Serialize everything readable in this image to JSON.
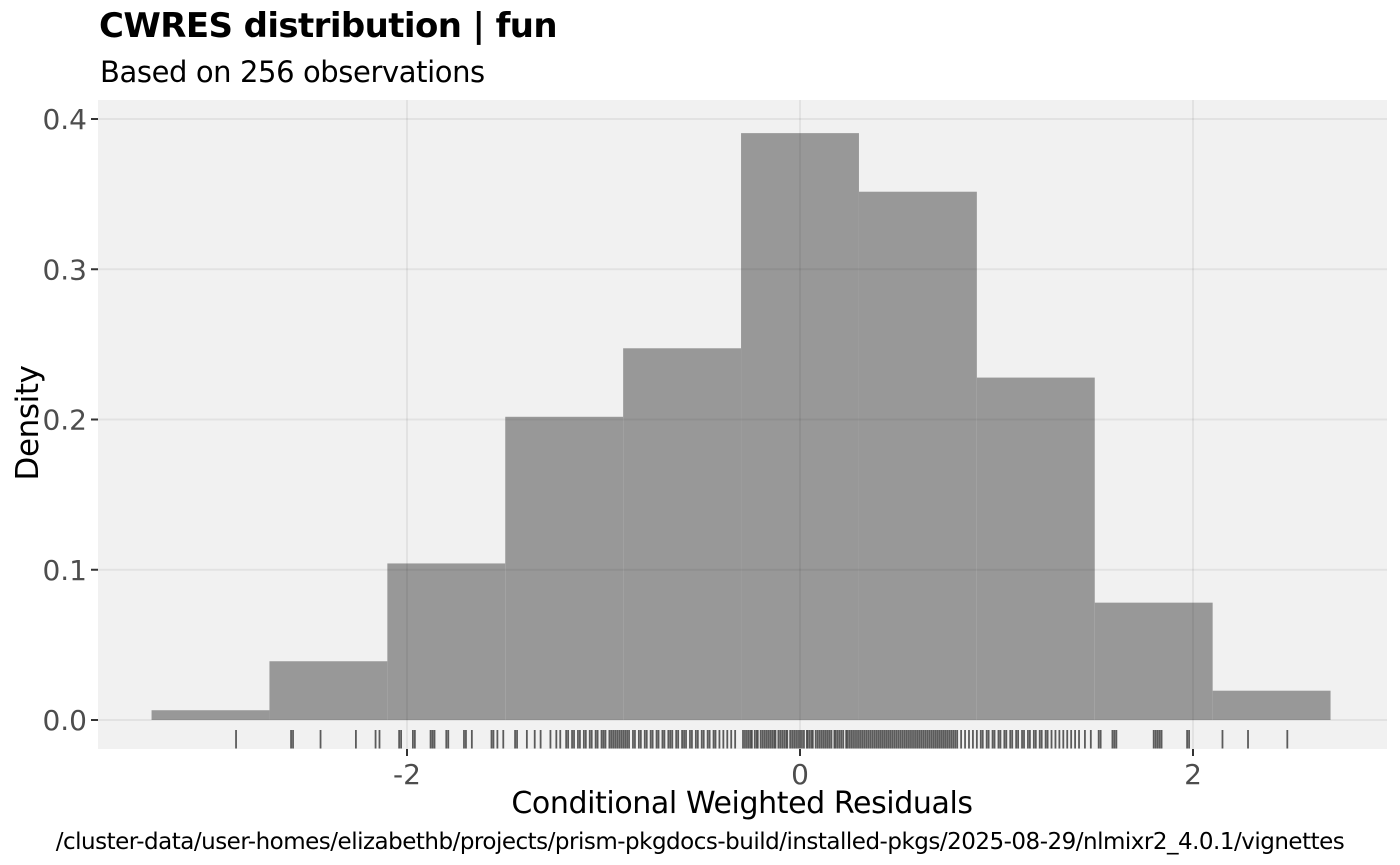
{
  "colors": {
    "page_bg": "#ffffff",
    "panel_bg": "#f1f1f1",
    "bar_fill": "#989898",
    "grid_overlay": "#000000",
    "tick_mark": "#333333",
    "tick_label": "#4d4d4d",
    "rug": "#474747",
    "text": "#000000"
  },
  "chart_data": {
    "type": "bar",
    "subtype": "histogram-density",
    "title": "CWRES distribution | fun",
    "subtitle": "Based on 256 observations",
    "caption": "/cluster-data/user-homes/elizabethb/projects/prism-pkgdocs-build/installed-pkgs/2025-08-29/nlmixr2_4.0.1/vignettes",
    "xlabel": "Conditional Weighted Residuals",
    "ylabel": "Density",
    "n_observations": 256,
    "grid": true,
    "legend_position": "none",
    "xlim": [
      -3.6,
      3.0
    ],
    "ylim": [
      -0.0195,
      0.412
    ],
    "x_ticks": [
      -2,
      0,
      2
    ],
    "x_tick_labels": [
      "-2",
      "0",
      "2"
    ],
    "y_ticks": [
      0.0,
      0.1,
      0.2,
      0.3,
      0.4
    ],
    "y_tick_labels": [
      "0.0",
      "0.1",
      "0.2",
      "0.3",
      "0.4"
    ],
    "bin_width": 0.6,
    "bin_edges": [
      -3.3,
      -2.7,
      -2.1,
      -1.5,
      -0.9,
      -0.3,
      0.3,
      0.9,
      1.5,
      2.1,
      2.7
    ],
    "counts": [
      1,
      6,
      16,
      31,
      38,
      60,
      54,
      35,
      12,
      3
    ],
    "densities": [
      0.0065,
      0.0391,
      0.1042,
      0.2018,
      0.2474,
      0.3906,
      0.3516,
      0.2279,
      0.0781,
      0.0195
    ],
    "rug_x": [
      -2.87,
      -2.59,
      -2.58,
      -2.44,
      -2.26,
      -2.16,
      -2.14,
      -2.04,
      -2.03,
      -1.97,
      -1.96,
      -1.88,
      -1.87,
      -1.86,
      -1.8,
      -1.79,
      -1.71,
      -1.7,
      -1.67,
      -1.57,
      -1.56,
      -1.54,
      -1.51,
      -1.45,
      -1.44,
      -1.39,
      -1.35,
      -1.32,
      -1.27,
      -1.24,
      -1.22,
      -1.19,
      -1.18,
      -1.16,
      -1.15,
      -1.13,
      -1.12,
      -1.1,
      -1.09,
      -1.07,
      -1.06,
      -1.04,
      -1.03,
      -1.01,
      -1.0,
      -0.99,
      -0.97,
      -0.96,
      -0.95,
      -0.94,
      -0.93,
      -0.92,
      -0.91,
      -0.9,
      -0.89,
      -0.88,
      -0.87,
      -0.85,
      -0.84,
      -0.82,
      -0.81,
      -0.79,
      -0.78,
      -0.76,
      -0.75,
      -0.73,
      -0.72,
      -0.7,
      -0.69,
      -0.67,
      -0.66,
      -0.65,
      -0.63,
      -0.62,
      -0.6,
      -0.59,
      -0.58,
      -0.56,
      -0.55,
      -0.53,
      -0.52,
      -0.5,
      -0.49,
      -0.47,
      -0.46,
      -0.44,
      -0.43,
      -0.41,
      -0.39,
      -0.37,
      -0.35,
      -0.33,
      -0.29,
      -0.28,
      -0.27,
      -0.26,
      -0.25,
      -0.245,
      -0.23,
      -0.22,
      -0.215,
      -0.2,
      -0.19,
      -0.18,
      -0.17,
      -0.16,
      -0.15,
      -0.14,
      -0.13,
      -0.125,
      -0.11,
      -0.1,
      -0.09,
      -0.08,
      -0.07,
      -0.065,
      -0.05,
      -0.04,
      -0.03,
      -0.02,
      -0.01,
      0.0,
      0.01,
      0.02,
      0.035,
      0.04,
      0.05,
      0.06,
      0.065,
      0.08,
      0.09,
      0.1,
      0.11,
      0.12,
      0.13,
      0.14,
      0.15,
      0.16,
      0.175,
      0.18,
      0.19,
      0.2,
      0.21,
      0.22,
      0.235,
      0.24,
      0.25,
      0.26,
      0.27,
      0.28,
      0.29,
      0.3,
      0.31,
      0.32,
      0.33,
      0.34,
      0.35,
      0.36,
      0.37,
      0.38,
      0.39,
      0.4,
      0.41,
      0.42,
      0.43,
      0.44,
      0.45,
      0.46,
      0.47,
      0.48,
      0.49,
      0.5,
      0.51,
      0.52,
      0.53,
      0.54,
      0.55,
      0.56,
      0.57,
      0.58,
      0.59,
      0.6,
      0.61,
      0.62,
      0.63,
      0.64,
      0.65,
      0.66,
      0.67,
      0.68,
      0.69,
      0.7,
      0.71,
      0.72,
      0.73,
      0.74,
      0.75,
      0.76,
      0.77,
      0.78,
      0.79,
      0.8,
      0.82,
      0.84,
      0.86,
      0.88,
      0.9,
      0.92,
      0.93,
      0.95,
      0.96,
      0.98,
      0.99,
      1.01,
      1.02,
      1.04,
      1.05,
      1.07,
      1.08,
      1.1,
      1.11,
      1.13,
      1.14,
      1.16,
      1.17,
      1.19,
      1.2,
      1.22,
      1.23,
      1.25,
      1.26,
      1.28,
      1.3,
      1.32,
      1.34,
      1.36,
      1.38,
      1.4,
      1.42,
      1.45,
      1.48,
      1.52,
      1.53,
      1.59,
      1.6,
      1.61,
      1.8,
      1.81,
      1.82,
      1.83,
      1.84,
      1.97,
      1.98,
      2.15,
      2.28,
      2.48
    ]
  }
}
